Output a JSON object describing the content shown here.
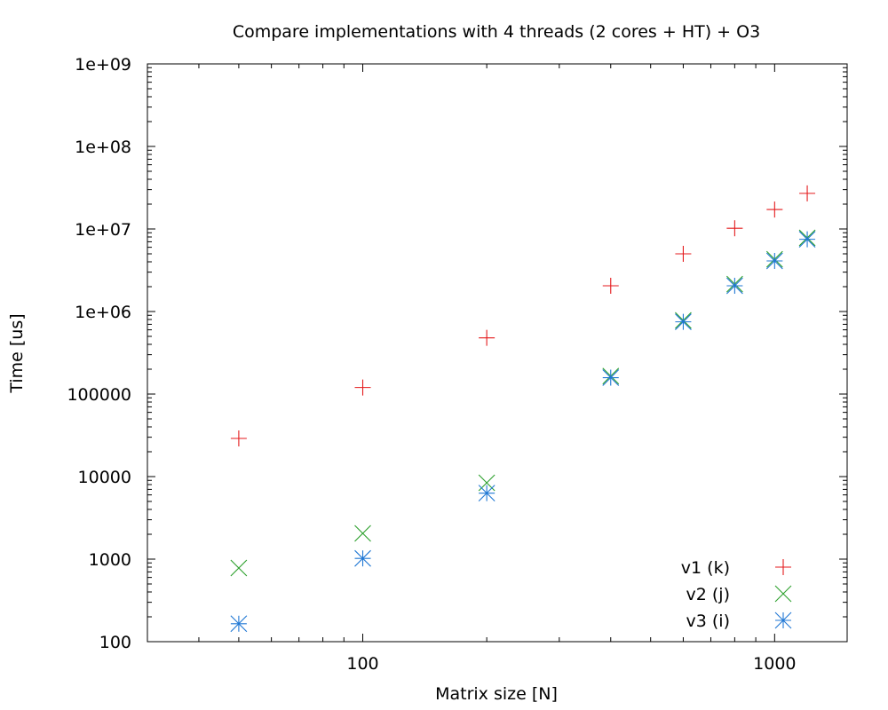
{
  "chart_data": {
    "type": "scatter",
    "title": "Compare implementations with 4 threads (2 cores + HT) + O3",
    "xlabel": "Matrix size [N]",
    "ylabel": "Time [us]",
    "xscale": "log",
    "yscale": "log",
    "xlim": [
      30,
      1500
    ],
    "ylim": [
      100,
      1000000000
    ],
    "grid": false,
    "legend_position": "bottom-right",
    "x_ticks": [
      {
        "value": 100,
        "label": "100"
      },
      {
        "value": 1000,
        "label": "1000"
      }
    ],
    "y_ticks": [
      {
        "value": 100,
        "label": "100"
      },
      {
        "value": 1000,
        "label": "1000"
      },
      {
        "value": 10000,
        "label": "10000"
      },
      {
        "value": 100000,
        "label": "100000"
      },
      {
        "value": 1000000,
        "label": "1e+06"
      },
      {
        "value": 10000000,
        "label": "1e+07"
      },
      {
        "value": 100000000,
        "label": "1e+08"
      },
      {
        "value": 1000000000,
        "label": "1e+09"
      }
    ],
    "x": [
      50,
      100,
      200,
      400,
      600,
      800,
      1000,
      1200
    ],
    "series": [
      {
        "name": "v1 (k)",
        "marker": "plus",
        "color": "#e41a1c",
        "values": [
          29000,
          120000,
          480000,
          2050000,
          5000000,
          10200000,
          17200000,
          27000000
        ]
      },
      {
        "name": "v2 (j)",
        "marker": "cross",
        "color": "#2ca02c",
        "values": [
          780,
          2050,
          8400,
          165000,
          780000,
          2150000,
          4300000,
          7800000
        ]
      },
      {
        "name": "v3 (i)",
        "marker": "star",
        "color": "#1f77d4",
        "values": [
          165,
          1020,
          6300,
          158000,
          750000,
          2050000,
          4100000,
          7500000
        ]
      }
    ]
  }
}
